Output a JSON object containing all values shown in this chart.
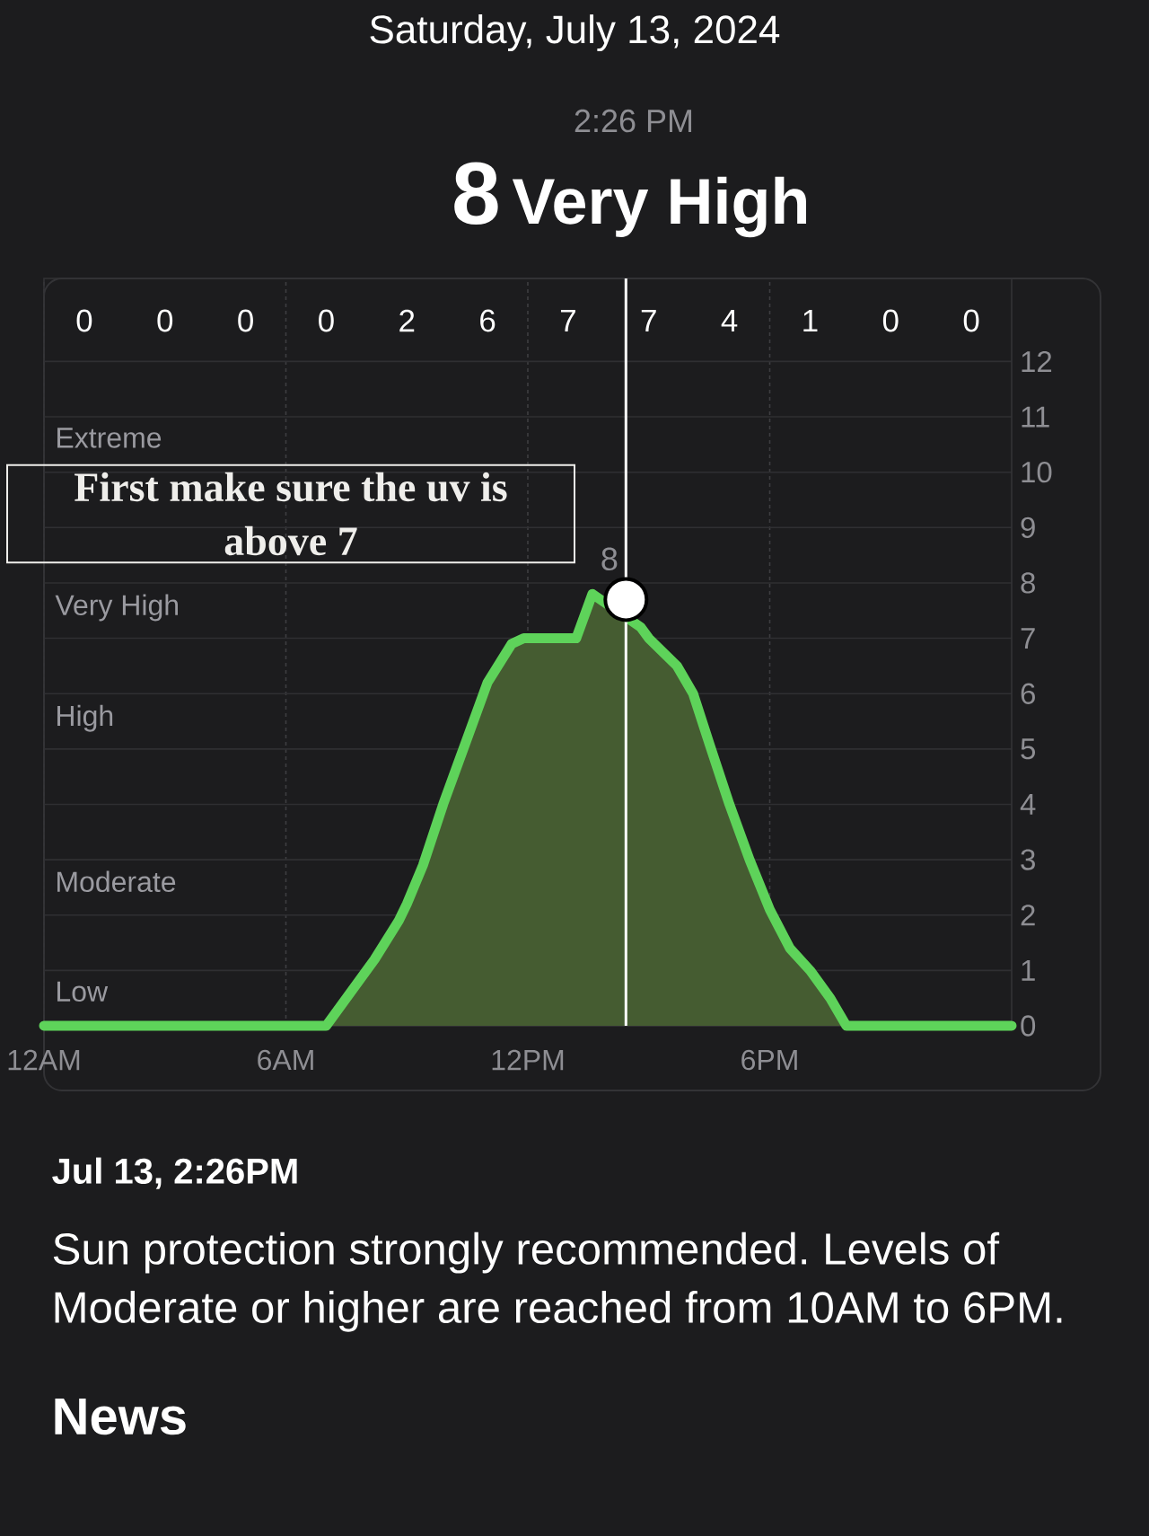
{
  "chart_data": {
    "type": "area",
    "title": "Saturday, July 13, 2024",
    "subtitle": "2:26 PM",
    "xlim": [
      "2024-07-13T00:00",
      "2024-07-14T00:00"
    ],
    "xticks": [
      {
        "value": "2024-07-13T00:00",
        "label": "12AM"
      },
      {
        "value": "2024-07-13T06:00",
        "label": "6AM"
      },
      {
        "value": "2024-07-13T12:00",
        "label": "12PM"
      },
      {
        "value": "2024-07-13T18:00",
        "label": "6PM"
      }
    ],
    "ylim": [
      0,
      13.5
    ],
    "yticks": [
      0,
      1,
      2,
      3,
      4,
      5,
      6,
      7,
      8,
      9,
      10,
      11,
      12
    ],
    "grid": true,
    "series": [
      {
        "color": "#5ed35a",
        "x": [
          "2024-07-13T00:00",
          "2024-07-13T01:00",
          "2024-07-13T03:00",
          "2024-07-13T05:00",
          "2024-07-13T07:00",
          "2024-07-13T07:36",
          "2024-07-13T08:12",
          "2024-07-13T08:48",
          "2024-07-13T09:00",
          "2024-07-13T09:24",
          "2024-07-13T09:54",
          "2024-07-13T10:30",
          "2024-07-13T11:00",
          "2024-07-13T11:36",
          "2024-07-13T11:54",
          "2024-07-13T13:00",
          "2024-07-13T13:12",
          "2024-07-13T13:36",
          "2024-07-13T14:26",
          "2024-07-13T14:48",
          "2024-07-13T15:00",
          "2024-07-13T15:42",
          "2024-07-13T16:06",
          "2024-07-13T16:30",
          "2024-07-13T17:00",
          "2024-07-13T17:30",
          "2024-07-13T18:00",
          "2024-07-13T18:30",
          "2024-07-13T19:00",
          "2024-07-13T19:30",
          "2024-07-13T19:54",
          "2024-07-13T21:00",
          "2024-07-13T23:00",
          "2024-07-14T00:00"
        ],
        "values": [
          0,
          0,
          0,
          0,
          0,
          0.6,
          1.2,
          1.9,
          2.2,
          2.9,
          4.0,
          5.2,
          6.2,
          6.9,
          7.0,
          7.0,
          7.0,
          7.8,
          null,
          7.2,
          7.0,
          6.5,
          6.0,
          5.1,
          4.0,
          3.0,
          2.1,
          1.4,
          1.0,
          0.5,
          0,
          0,
          0,
          0
        ]
      },
      {
        "type": "scatter",
        "color": "#ffffff",
        "marker": "circle",
        "x": [
          "2024-07-13T14:26"
        ],
        "values": [
          7.7
        ],
        "value_labels": [
          "8"
        ]
      }
    ],
    "ref_lines": [
      {
        "axis": "x",
        "value": "2024-07-13T14:26",
        "color": "#ffffff"
      }
    ],
    "annotations": [
      "8",
      "Very High",
      "0",
      "0",
      "0",
      "0",
      "2",
      "6",
      "7",
      "7",
      "4",
      "1",
      "0",
      "0",
      "First make sure the uv is above 7",
      "Extreme",
      "Very High",
      "High",
      "Moderate",
      "Low",
      "Jul 13, 2:26PM",
      "Sun protection strongly recommended. Levels of Moderate or higher are reached from 10AM to 6PM.",
      "News"
    ]
  }
}
